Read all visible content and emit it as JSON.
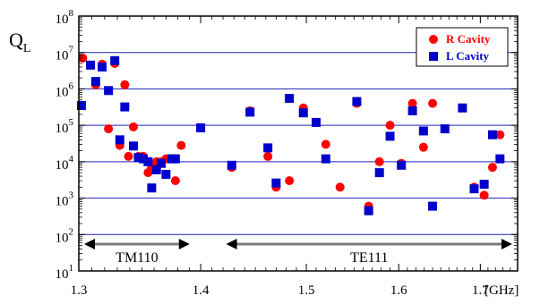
{
  "chart_data": {
    "type": "scatter",
    "ylabel_main": "Q",
    "ylabel_sub": "L",
    "y_scale": "log",
    "ylim": [
      10,
      100000000
    ],
    "y_ticks": [
      {
        "value": 10,
        "base": "10",
        "exp": "1"
      },
      {
        "value": 100,
        "base": "10",
        "exp": "2"
      },
      {
        "value": 1000,
        "base": "10",
        "exp": "3"
      },
      {
        "value": 10000,
        "base": "10",
        "exp": "4"
      },
      {
        "value": 100000,
        "base": "10",
        "exp": "5"
      },
      {
        "value": 1000000,
        "base": "10",
        "exp": "6"
      },
      {
        "value": 10000000,
        "base": "10",
        "exp": "7"
      },
      {
        "value": 100000000,
        "base": "10",
        "exp": "8"
      }
    ],
    "x_scale": "reciprocal",
    "xlim": [
      1.3,
      1.75
    ],
    "x_ticks": [
      {
        "value": 1.3,
        "label": "1.3"
      },
      {
        "value": 1.4,
        "label": "1.4"
      },
      {
        "value": 1.5,
        "label": "1.5"
      },
      {
        "value": 1.6,
        "label": "1.6"
      },
      {
        "value": 1.7,
        "label": "1.7"
      }
    ],
    "x_unit": "[GHz]",
    "grid": "horizontal",
    "legend_position": "top-right",
    "colors": {
      "r_cavity": "#ff0000",
      "l_cavity": "#0000cc",
      "grid": "#2222bb",
      "band_arrow": "#7a7a7a"
    },
    "bands": [
      {
        "label": "TM110",
        "x_start": 1.3,
        "x_end": 1.395
      },
      {
        "label": "TE111",
        "x_start": 1.418,
        "x_end": 1.75
      }
    ],
    "series": [
      {
        "name": "R Cavity",
        "marker": "circle",
        "color": "#ff0000",
        "points": [
          [
            1.303,
            7000000
          ],
          [
            1.313,
            1300000
          ],
          [
            1.318,
            4800000
          ],
          [
            1.323,
            80000
          ],
          [
            1.328,
            5000000
          ],
          [
            1.332,
            28000
          ],
          [
            1.336,
            1300000
          ],
          [
            1.339,
            14000
          ],
          [
            1.343,
            90000
          ],
          [
            1.347,
            14000
          ],
          [
            1.351,
            14000
          ],
          [
            1.355,
            5000
          ],
          [
            1.358,
            7000
          ],
          [
            1.362,
            10000
          ],
          [
            1.366,
            10000
          ],
          [
            1.37,
            12000
          ],
          [
            1.375,
            12000
          ],
          [
            1.378,
            3000
          ],
          [
            1.383,
            28000
          ],
          [
            1.4,
            85000
          ],
          [
            1.428,
            7000
          ],
          [
            1.445,
            250000
          ],
          [
            1.462,
            14000
          ],
          [
            1.47,
            2000
          ],
          [
            1.483,
            3000
          ],
          [
            1.497,
            300000
          ],
          [
            1.52,
            30000
          ],
          [
            1.535,
            2000
          ],
          [
            1.553,
            400000
          ],
          [
            1.566,
            600
          ],
          [
            1.578,
            10000
          ],
          [
            1.59,
            100000
          ],
          [
            1.603,
            9000
          ],
          [
            1.616,
            400000
          ],
          [
            1.629,
            25000
          ],
          [
            1.64,
            400000
          ],
          [
            1.692,
            2000
          ],
          [
            1.705,
            1200
          ],
          [
            1.716,
            7000
          ],
          [
            1.726,
            55000
          ]
        ]
      },
      {
        "name": "L Cavity",
        "marker": "square",
        "color": "#0000cc",
        "points": [
          [
            1.302,
            350000
          ],
          [
            1.309,
            4500000
          ],
          [
            1.313,
            1600000
          ],
          [
            1.318,
            4000000
          ],
          [
            1.323,
            900000
          ],
          [
            1.328,
            6000000
          ],
          [
            1.332,
            40000
          ],
          [
            1.336,
            320000
          ],
          [
            1.343,
            27000
          ],
          [
            1.347,
            13000
          ],
          [
            1.351,
            12000
          ],
          [
            1.355,
            10000
          ],
          [
            1.358,
            1900
          ],
          [
            1.362,
            6000
          ],
          [
            1.366,
            9000
          ],
          [
            1.37,
            4500
          ],
          [
            1.375,
            12000
          ],
          [
            1.378,
            12000
          ],
          [
            1.4,
            85000
          ],
          [
            1.428,
            8000
          ],
          [
            1.445,
            230000
          ],
          [
            1.462,
            24000
          ],
          [
            1.47,
            2600
          ],
          [
            1.483,
            550000
          ],
          [
            1.497,
            220000
          ],
          [
            1.51,
            120000
          ],
          [
            1.52,
            12000
          ],
          [
            1.553,
            450000
          ],
          [
            1.566,
            450
          ],
          [
            1.578,
            5000
          ],
          [
            1.59,
            50000
          ],
          [
            1.603,
            8000
          ],
          [
            1.616,
            250000
          ],
          [
            1.629,
            70000
          ],
          [
            1.64,
            600
          ],
          [
            1.655,
            80000
          ],
          [
            1.677,
            300000
          ],
          [
            1.692,
            1800
          ],
          [
            1.705,
            2400
          ],
          [
            1.716,
            55000
          ],
          [
            1.726,
            12000
          ]
        ]
      }
    ]
  }
}
